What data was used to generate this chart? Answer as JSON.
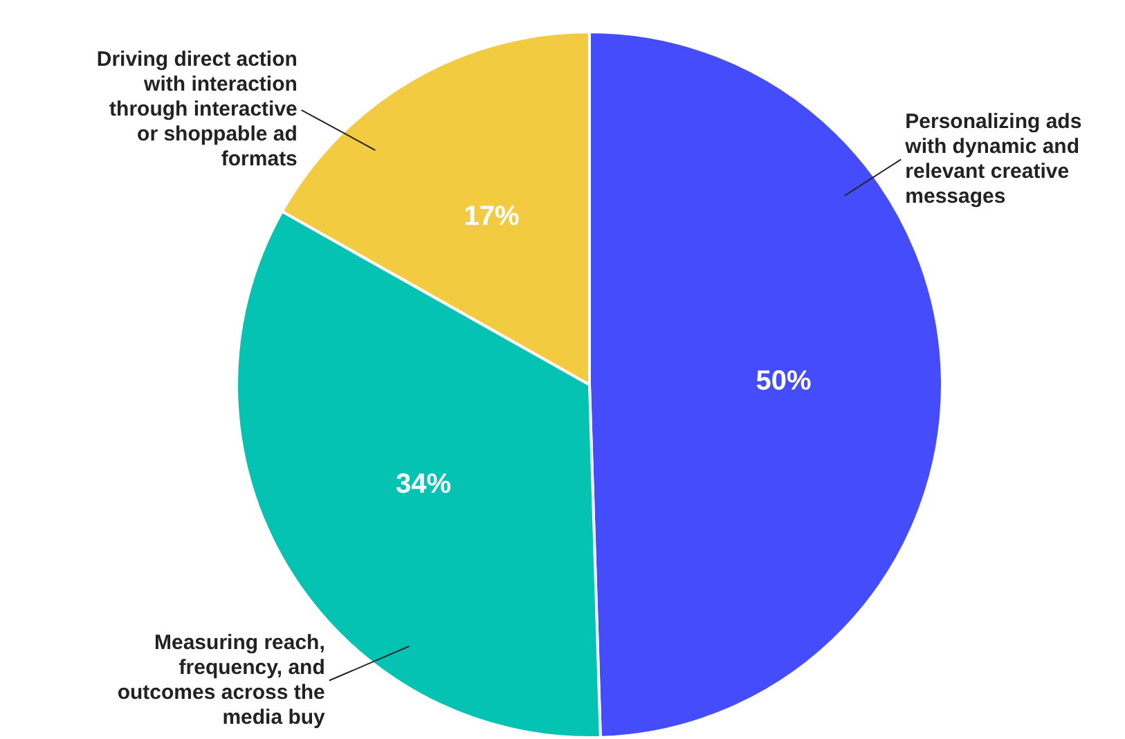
{
  "chart_data": {
    "type": "pie",
    "categories": [
      "Personalizing ads with dynamic and relevant creative messages",
      "Measuring reach, frequency, and outcomes across the media buy",
      "Driving direct action with interaction through interactive or shoppable ad formats"
    ],
    "values": [
      50,
      34,
      17
    ],
    "colors": [
      "#444cfb",
      "#05c3b3",
      "#f2cb40"
    ],
    "value_labels": [
      "50%",
      "34%",
      "17%"
    ],
    "legend": false
  }
}
